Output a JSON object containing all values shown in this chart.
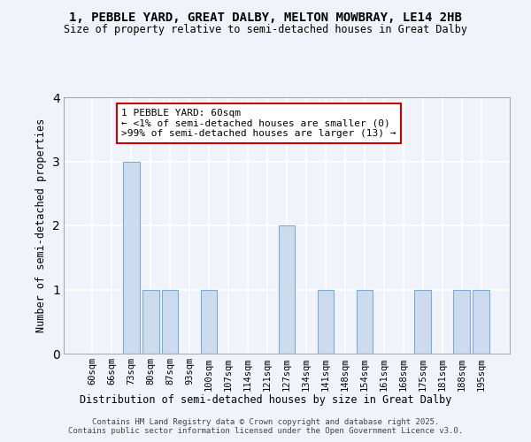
{
  "title1": "1, PEBBLE YARD, GREAT DALBY, MELTON MOWBRAY, LE14 2HB",
  "title2": "Size of property relative to semi-detached houses in Great Dalby",
  "xlabel": "Distribution of semi-detached houses by size in Great Dalby",
  "ylabel": "Number of semi-detached properties",
  "categories": [
    "60sqm",
    "66sqm",
    "73sqm",
    "80sqm",
    "87sqm",
    "93sqm",
    "100sqm",
    "107sqm",
    "114sqm",
    "121sqm",
    "127sqm",
    "134sqm",
    "141sqm",
    "148sqm",
    "154sqm",
    "161sqm",
    "168sqm",
    "175sqm",
    "181sqm",
    "188sqm",
    "195sqm"
  ],
  "values": [
    0,
    0,
    3,
    1,
    1,
    0,
    1,
    0,
    0,
    0,
    2,
    0,
    1,
    0,
    1,
    0,
    0,
    1,
    0,
    1,
    1
  ],
  "highlight_index": 0,
  "bar_color": "#ccdcee",
  "bar_edge_color": "#7aabda",
  "annotation_text_line1": "1 PEBBLE YARD: 60sqm",
  "annotation_text_line2": "← <1% of semi-detached houses are smaller (0)",
  "annotation_text_line3": ">99% of semi-detached houses are larger (13) →",
  "footer_line1": "Contains HM Land Registry data © Crown copyright and database right 2025.",
  "footer_line2": "Contains public sector information licensed under the Open Government Licence v3.0.",
  "background_color": "#f0f4fa",
  "grid_color": "#ffffff",
  "ann_border_color": "#cc0000",
  "ylim": [
    0,
    4
  ],
  "yticks": [
    0,
    1,
    2,
    3,
    4
  ]
}
